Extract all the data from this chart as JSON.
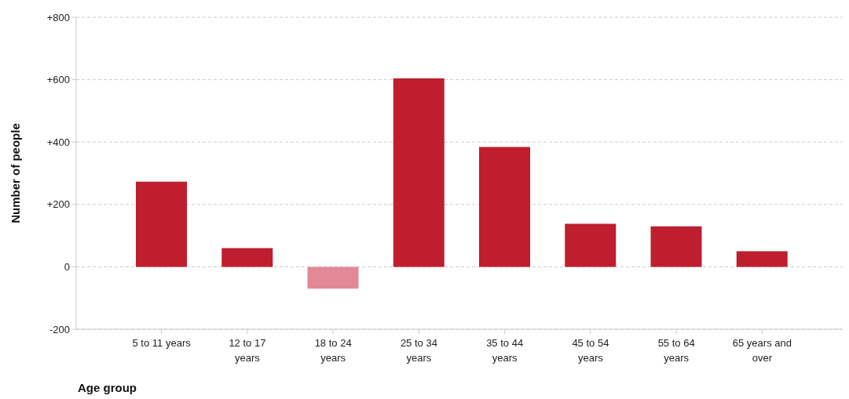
{
  "chart_data": {
    "type": "bar",
    "xlabel": "Age group",
    "ylabel": "Number of people",
    "categories": [
      "5 to 11 years",
      "12 to 17 years",
      "18 to 24 years",
      "25 to 34 years",
      "35 to 44 years",
      "45 to 54 years",
      "55 to 64 years",
      "65 years and over"
    ],
    "values": [
      273,
      60,
      -70,
      604,
      384,
      138,
      130,
      50
    ],
    "colors": [
      "#be1e2d",
      "#be1e2d",
      "#e38896",
      "#be1e2d",
      "#be1e2d",
      "#be1e2d",
      "#be1e2d",
      "#be1e2d"
    ],
    "ylim": [
      -200,
      800
    ],
    "yticks": [
      -200,
      0,
      {
        "value": 200,
        "label": "+200"
      },
      {
        "value": 400,
        "label": "+400"
      },
      {
        "value": 600,
        "label": "+600"
      },
      {
        "value": 800,
        "label": "+800"
      }
    ],
    "grid": "y",
    "legend": false
  }
}
